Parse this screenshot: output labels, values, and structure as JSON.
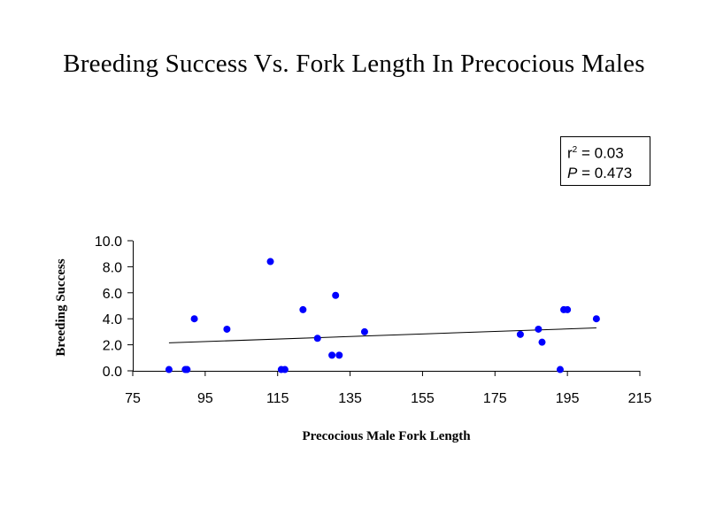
{
  "chart_data": {
    "type": "scatter",
    "title": "Breeding Success Vs. Fork Length In Precocious Males",
    "xlabel": "Precocious Male Fork Length",
    "ylabel": "Breeding Success",
    "xlim": [
      75,
      215
    ],
    "ylim": [
      0,
      10
    ],
    "x_ticks": [
      "75",
      "95",
      "115",
      "135",
      "155",
      "175",
      "195",
      "215"
    ],
    "y_ticks": [
      "0.0",
      "2.0",
      "4.0",
      "6.0",
      "8.0",
      "10.0"
    ],
    "marker_color": "#0000ff",
    "points": [
      {
        "x": 85,
        "y": 0.1
      },
      {
        "x": 89.5,
        "y": 0.1
      },
      {
        "x": 90,
        "y": 0.1
      },
      {
        "x": 92,
        "y": 4.0
      },
      {
        "x": 101,
        "y": 3.2
      },
      {
        "x": 113,
        "y": 8.4
      },
      {
        "x": 116,
        "y": 0.1
      },
      {
        "x": 117,
        "y": 0.1
      },
      {
        "x": 122,
        "y": 4.7
      },
      {
        "x": 126,
        "y": 2.5
      },
      {
        "x": 130,
        "y": 1.2
      },
      {
        "x": 131,
        "y": 5.8
      },
      {
        "x": 132,
        "y": 1.2
      },
      {
        "x": 139,
        "y": 3.0
      },
      {
        "x": 182,
        "y": 2.8
      },
      {
        "x": 187,
        "y": 3.2
      },
      {
        "x": 188,
        "y": 2.2
      },
      {
        "x": 193,
        "y": 0.1
      },
      {
        "x": 194,
        "y": 4.7
      },
      {
        "x": 195,
        "y": 4.7
      },
      {
        "x": 203,
        "y": 4.0
      }
    ],
    "trendline": {
      "x": [
        85,
        203
      ],
      "y": [
        2.15,
        3.3
      ]
    },
    "annotation": {
      "r2_prefix": "r",
      "r2_sup": "2",
      "r2_value": " = 0.03",
      "p_label": "P",
      "p_value": " = 0.473"
    }
  }
}
